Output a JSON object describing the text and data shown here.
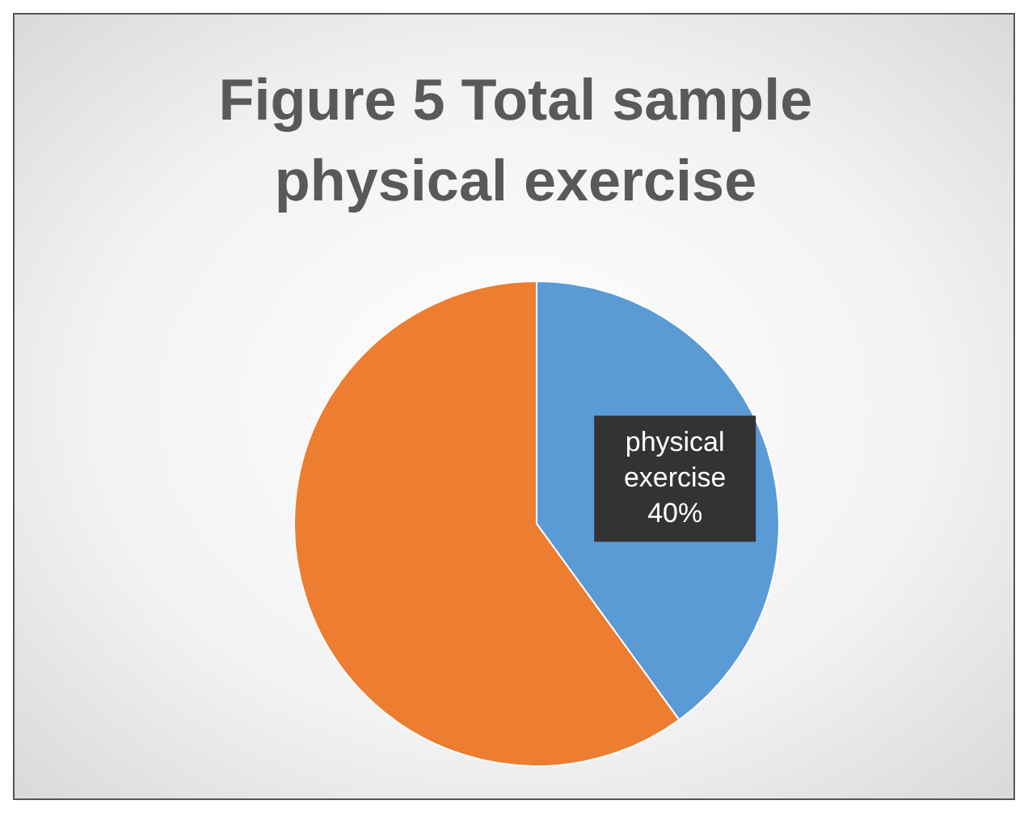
{
  "chart_data": {
    "type": "pie",
    "title": "Figure 5 Total sample physical exercise",
    "categories": [
      "physical exercise",
      null
    ],
    "values": [
      40,
      60
    ],
    "colors": [
      "#5b9bd5",
      "#ed7d31"
    ],
    "value_labels": [
      "40%",
      null
    ],
    "legend": false
  }
}
